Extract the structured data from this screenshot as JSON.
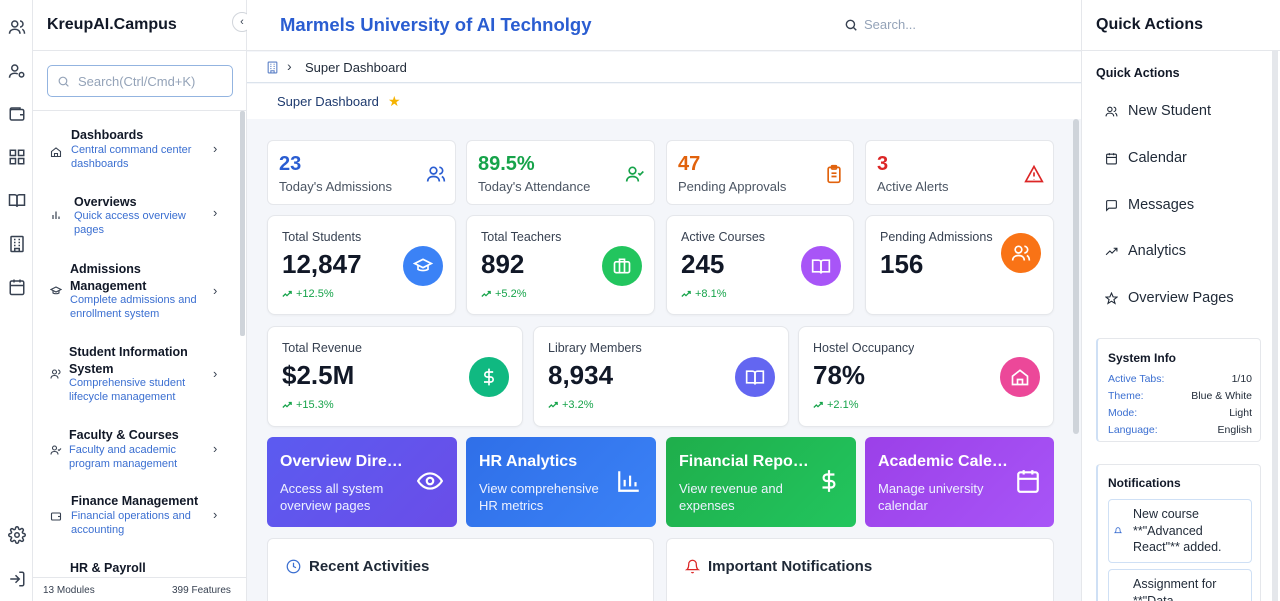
{
  "sidebar": {
    "brand": "KreupAI.Campus",
    "collapse_glyph": "‹",
    "search_placeholder": "Search(Ctrl/Cmd+K)",
    "items": [
      {
        "title": "Dashboards",
        "desc": "Central command center dashboards",
        "icon": "home-icon"
      },
      {
        "title": "Overviews",
        "desc": "Quick access overview pages",
        "icon": "bar-chart-icon"
      },
      {
        "title": "Admissions Management",
        "desc": "Complete admissions and enrollment system",
        "icon": "graduation-cap-icon"
      },
      {
        "title": "Student Information System",
        "desc": "Comprehensive student lifecycle management",
        "icon": "users-icon"
      },
      {
        "title": "Faculty & Courses",
        "desc": "Faculty and academic program management",
        "icon": "user-check-icon"
      },
      {
        "title": "Finance Management",
        "desc": "Financial operations and accounting",
        "icon": "wallet-icon"
      },
      {
        "title": "HR & Payroll",
        "desc": "",
        "icon": "briefcase-icon"
      }
    ],
    "footer": {
      "modules": "13 Modules",
      "features": "399 Features"
    }
  },
  "header": {
    "university": "Marmels University of AI Technolgy",
    "search_placeholder": "Search..."
  },
  "breadcrumb": {
    "current": "Super Dashboard"
  },
  "page": {
    "title": "Super Dashboard"
  },
  "quick_stats": [
    {
      "value": "23",
      "label": "Today's Admissions",
      "color": "#2a5dd1",
      "icon": "users-icon"
    },
    {
      "value": "89.5%",
      "label": "Today's Attendance",
      "color": "#16a34a",
      "icon": "user-check-icon"
    },
    {
      "value": "47",
      "label": "Pending Approvals",
      "color": "#e1620c",
      "icon": "clipboard-icon"
    },
    {
      "value": "3",
      "label": "Active Alerts",
      "color": "#dc2626",
      "icon": "alert-triangle-icon"
    }
  ],
  "stats": [
    {
      "label": "Total Students",
      "value": "12,847",
      "trend": "+12.5%",
      "color": "#3b82f6",
      "icon": "graduation-cap-icon"
    },
    {
      "label": "Total Teachers",
      "value": "892",
      "trend": "+5.2%",
      "color": "#22c55e",
      "icon": "briefcase-icon"
    },
    {
      "label": "Active Courses",
      "value": "245",
      "trend": "+8.1%",
      "color": "#a855f7",
      "icon": "book-icon"
    },
    {
      "label": "Pending Admissions",
      "value": "156",
      "trend": "",
      "color": "#f97316",
      "icon": "users-icon"
    },
    {
      "label": "Total Revenue",
      "value": "$2.5M",
      "trend": "+15.3%",
      "color": "#10b981",
      "icon": "dollar-icon"
    },
    {
      "label": "Library Members",
      "value": "8,934",
      "trend": "+3.2%",
      "color": "#6366f1",
      "icon": "book-icon"
    },
    {
      "label": "Hostel Occupancy",
      "value": "78%",
      "trend": "+2.1%",
      "color": "#ec4899",
      "icon": "home-icon"
    }
  ],
  "tiles": [
    {
      "title": "Overview Directory",
      "desc": "Access all system overview pages",
      "color": "#5b5bf0",
      "icon": "eye-icon"
    },
    {
      "title": "HR Analytics",
      "desc": "View comprehensive HR metrics",
      "color": "#2f6fe8",
      "icon": "bar-chart-icon"
    },
    {
      "title": "Financial Reports",
      "desc": "View revenue and expenses",
      "color": "#1fae4b",
      "icon": "dollar-icon"
    },
    {
      "title": "Academic Calendar",
      "desc": "Manage university calendar",
      "color": "#9b40e8",
      "icon": "calendar-icon"
    }
  ],
  "panels": {
    "recent": {
      "title": "Recent Activities",
      "icon": "clock-icon"
    },
    "notifications": {
      "title": "Important Notifications",
      "icon": "bell-icon"
    }
  },
  "right_panel": {
    "title": "Quick Actions",
    "subtitle": "Quick Actions",
    "actions": [
      {
        "label": "New Student",
        "icon": "users-icon"
      },
      {
        "label": "Calendar",
        "icon": "calendar-icon"
      },
      {
        "label": "Messages",
        "icon": "message-icon"
      },
      {
        "label": "Analytics",
        "icon": "trending-up-icon"
      },
      {
        "label": "Overview Pages",
        "icon": "star-icon"
      }
    ],
    "system_info": {
      "title": "System Info",
      "rows": [
        {
          "key": "Active Tabs:",
          "value": "1/10"
        },
        {
          "key": "Theme:",
          "value": "Blue & White"
        },
        {
          "key": "Mode:",
          "value": "Light"
        },
        {
          "key": "Language:",
          "value": "English"
        }
      ]
    },
    "notifications": {
      "title": "Notifications",
      "items": [
        "New course **\"Advanced React\"** added.",
        "Assignment for **\"Data"
      ]
    }
  }
}
